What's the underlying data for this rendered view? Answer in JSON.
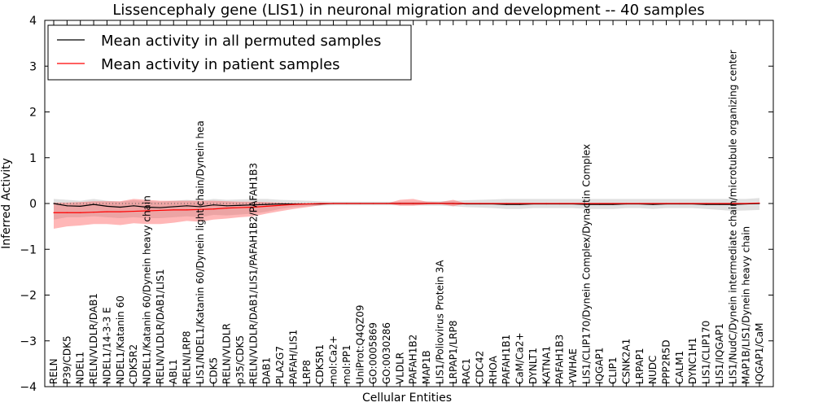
{
  "chart_data": {
    "type": "line",
    "title": "Lissencephaly gene (LIS1) in neuronal migration and development -- 40 samples",
    "xlabel": "Cellular Entities",
    "ylabel": "Inferred Activity",
    "ylim": [
      -4,
      4
    ],
    "yticks": [
      -4,
      -3,
      -2,
      -1,
      0,
      1,
      2,
      3,
      4
    ],
    "ytick_labels": [
      "−4",
      "−3",
      "−2",
      "−1",
      "0",
      "1",
      "2",
      "3",
      "4"
    ],
    "grid": false,
    "legend_position": "top-left",
    "categories": [
      "RELN",
      "P39/CDK5",
      "NDEL1",
      "RELN/VLDLR/DAB1",
      "NDEL1/14-3-3 E",
      "NDEL1/Katanin 60",
      "CDK5R2",
      "NDEL1/Katanin 60/Dynein heavy chain",
      "RELN/VLDLR/DAB1/LIS1",
      "ABL1",
      "RELN/LRP8",
      "LIS1/NDEL1/Katanin 60/Dynein light chain/Dynein hea",
      "CDK5",
      "RELN/VLDLR",
      "p35/CDK5",
      "RELN/VLDLR/DAB1/LIS1/PAFAH1B2/PAFAH1B3",
      "DAB1",
      "PLA2G7",
      "PAFAH/LIS1",
      "LRP8",
      "CDK5R1",
      "mol:Ca2+",
      "mol:PP1",
      "UniProt:Q4QZ09",
      "GO:0005869",
      "GO:0030286",
      "VLDLR",
      "PAFAH1B2",
      "MAP1B",
      "LIS1/Poliovirus Protein 3A",
      "LRPAP1/LRP8",
      "RAC1",
      "CDC42",
      "RHOA",
      "PAFAH1B1",
      "CaM/Ca2+",
      "DYNLT1",
      "KATNA1",
      "PAFAH1B3",
      "YWHAE",
      "LIS1/CLIP170/Dynein Complex/Dynactin Complex",
      "IQGAP1",
      "CLIP1",
      "CSNK2A1",
      "LRPAP1",
      "NUDC",
      "PPP2R5D",
      "CALM1",
      "DYNC1H1",
      "LIS1/CLIP170",
      "LIS1/IQGAP1",
      "LIS1/NudC/Dynein intermediate chain/microtubule organizing center",
      "MAP1B/LIS1/Dynein heavy chain",
      "IQGAP1/CaM"
    ],
    "series": [
      {
        "name": "Mean activity in all permuted samples",
        "color": "#000000",
        "values": [
          0.0,
          -0.05,
          -0.06,
          -0.02,
          -0.06,
          -0.08,
          -0.05,
          -0.08,
          -0.09,
          -0.07,
          -0.05,
          -0.07,
          -0.03,
          -0.05,
          -0.04,
          -0.03,
          -0.02,
          -0.01,
          -0.01,
          -0.01,
          -0.01,
          0.0,
          0.0,
          0.0,
          0.0,
          0.0,
          0.0,
          0.0,
          0.0,
          0.0,
          0.0,
          -0.01,
          -0.01,
          -0.01,
          -0.02,
          -0.02,
          -0.01,
          -0.01,
          -0.01,
          -0.01,
          -0.02,
          -0.02,
          -0.02,
          -0.01,
          -0.01,
          -0.02,
          -0.01,
          -0.01,
          -0.01,
          -0.02,
          -0.02,
          -0.02,
          -0.01,
          0.0
        ],
        "band_lower": [
          -0.35,
          -0.3,
          -0.3,
          -0.28,
          -0.3,
          -0.32,
          -0.3,
          -0.32,
          -0.32,
          -0.3,
          -0.28,
          -0.3,
          -0.25,
          -0.26,
          -0.24,
          -0.22,
          -0.18,
          -0.12,
          -0.08,
          -0.06,
          -0.05,
          -0.04,
          -0.04,
          -0.04,
          -0.04,
          -0.04,
          -0.04,
          -0.04,
          -0.05,
          -0.05,
          -0.06,
          -0.08,
          -0.09,
          -0.1,
          -0.12,
          -0.12,
          -0.1,
          -0.1,
          -0.1,
          -0.1,
          -0.12,
          -0.12,
          -0.12,
          -0.1,
          -0.1,
          -0.12,
          -0.1,
          -0.1,
          -0.1,
          -0.12,
          -0.14,
          -0.16,
          -0.15,
          -0.14
        ],
        "band_upper": [
          0.1,
          0.08,
          0.06,
          0.1,
          0.06,
          0.04,
          0.07,
          0.05,
          0.04,
          0.06,
          0.08,
          0.06,
          0.1,
          0.08,
          0.09,
          0.1,
          0.1,
          0.08,
          0.07,
          0.06,
          0.05,
          0.04,
          0.04,
          0.04,
          0.04,
          0.04,
          0.04,
          0.04,
          0.05,
          0.05,
          0.06,
          0.07,
          0.08,
          0.09,
          0.1,
          0.1,
          0.1,
          0.1,
          0.1,
          0.1,
          0.1,
          0.1,
          0.1,
          0.1,
          0.1,
          0.1,
          0.1,
          0.1,
          0.1,
          0.1,
          0.1,
          0.1,
          0.1,
          0.12
        ]
      },
      {
        "name": "Mean activity in patient samples",
        "color": "#ff0000",
        "band_color": "#ff4c4c",
        "values": [
          -0.2,
          -0.2,
          -0.2,
          -0.19,
          -0.18,
          -0.18,
          -0.17,
          -0.16,
          -0.15,
          -0.14,
          -0.14,
          -0.13,
          -0.12,
          -0.1,
          -0.09,
          -0.08,
          -0.06,
          -0.04,
          -0.02,
          -0.01,
          0.0,
          0.0,
          0.0,
          0.0,
          0.0,
          0.0,
          0.0,
          0.0,
          0.0,
          0.0,
          0.0,
          0.0,
          0.0,
          0.0,
          0.0,
          0.0,
          0.0,
          0.0,
          0.0,
          0.0,
          0.0,
          0.0,
          0.0,
          0.0,
          0.0,
          0.0,
          0.0,
          0.0,
          0.0,
          0.0,
          0.0,
          0.0,
          0.0,
          0.01
        ],
        "band_lower": [
          -0.55,
          -0.5,
          -0.48,
          -0.45,
          -0.45,
          -0.47,
          -0.43,
          -0.45,
          -0.45,
          -0.42,
          -0.38,
          -0.4,
          -0.35,
          -0.33,
          -0.3,
          -0.28,
          -0.22,
          -0.17,
          -0.12,
          -0.08,
          -0.04,
          0.0,
          0.0,
          0.0,
          0.0,
          0.0,
          -0.05,
          -0.05,
          -0.02,
          -0.01,
          -0.06,
          0.0,
          0.0,
          0.0,
          0.0,
          0.0,
          0.0,
          0.0,
          0.0,
          0.0,
          0.0,
          0.0,
          0.0,
          0.0,
          0.0,
          0.0,
          0.0,
          0.0,
          0.0,
          0.0,
          0.0,
          0.0,
          0.0,
          0.0
        ],
        "band_upper": [
          0.02,
          0.02,
          0.03,
          0.05,
          0.05,
          0.05,
          0.1,
          0.08,
          0.06,
          0.06,
          0.06,
          0.06,
          0.06,
          0.05,
          0.04,
          0.04,
          0.03,
          0.02,
          0.01,
          0.01,
          0.0,
          0.0,
          0.0,
          0.0,
          0.0,
          0.0,
          0.08,
          0.1,
          0.04,
          0.03,
          0.08,
          0.0,
          0.0,
          0.0,
          0.0,
          0.0,
          0.0,
          0.0,
          0.0,
          0.0,
          0.0,
          0.0,
          0.0,
          0.0,
          0.0,
          0.0,
          0.0,
          0.0,
          0.0,
          0.0,
          0.0,
          0.0,
          0.0,
          0.02
        ]
      }
    ]
  }
}
